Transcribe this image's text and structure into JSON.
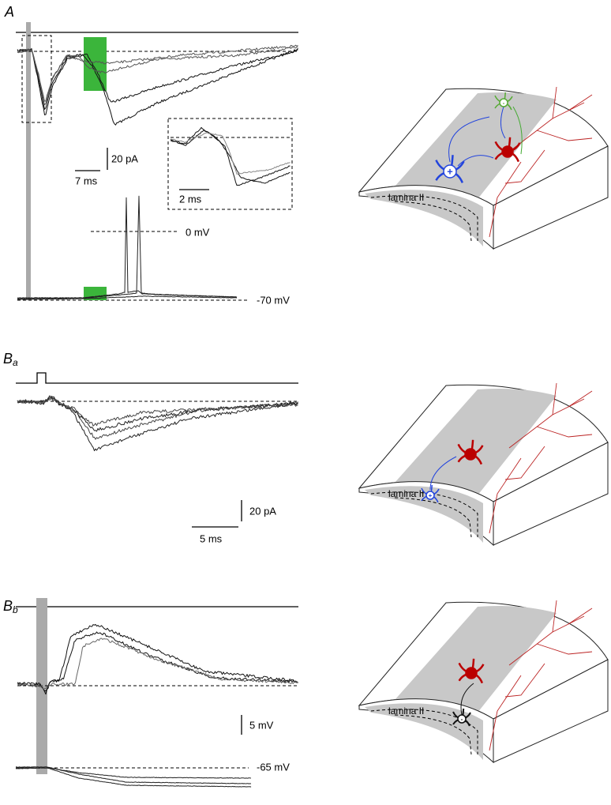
{
  "panel_a": {
    "label": "A",
    "current_scale": "20 pA",
    "time_scale": "7 ms",
    "inset_time_scale": "2 ms",
    "voltage_levels": [
      "0 mV",
      "-70 mV"
    ],
    "schematic": {
      "region": "lamina II",
      "signs": [
        "+",
        "-"
      ]
    }
  },
  "panel_ba": {
    "label": "B",
    "sublabel": "a",
    "current_scale": "20 pA",
    "time_scale": "5 ms",
    "schematic": {
      "region": "lamina II",
      "sign": "+"
    }
  },
  "panel_bb": {
    "label": "B",
    "sublabel": "b",
    "voltage_scale": "5 mV",
    "voltage_level": "-65 mV",
    "schematic": {
      "region": "lamina II",
      "sign": "-"
    }
  }
}
